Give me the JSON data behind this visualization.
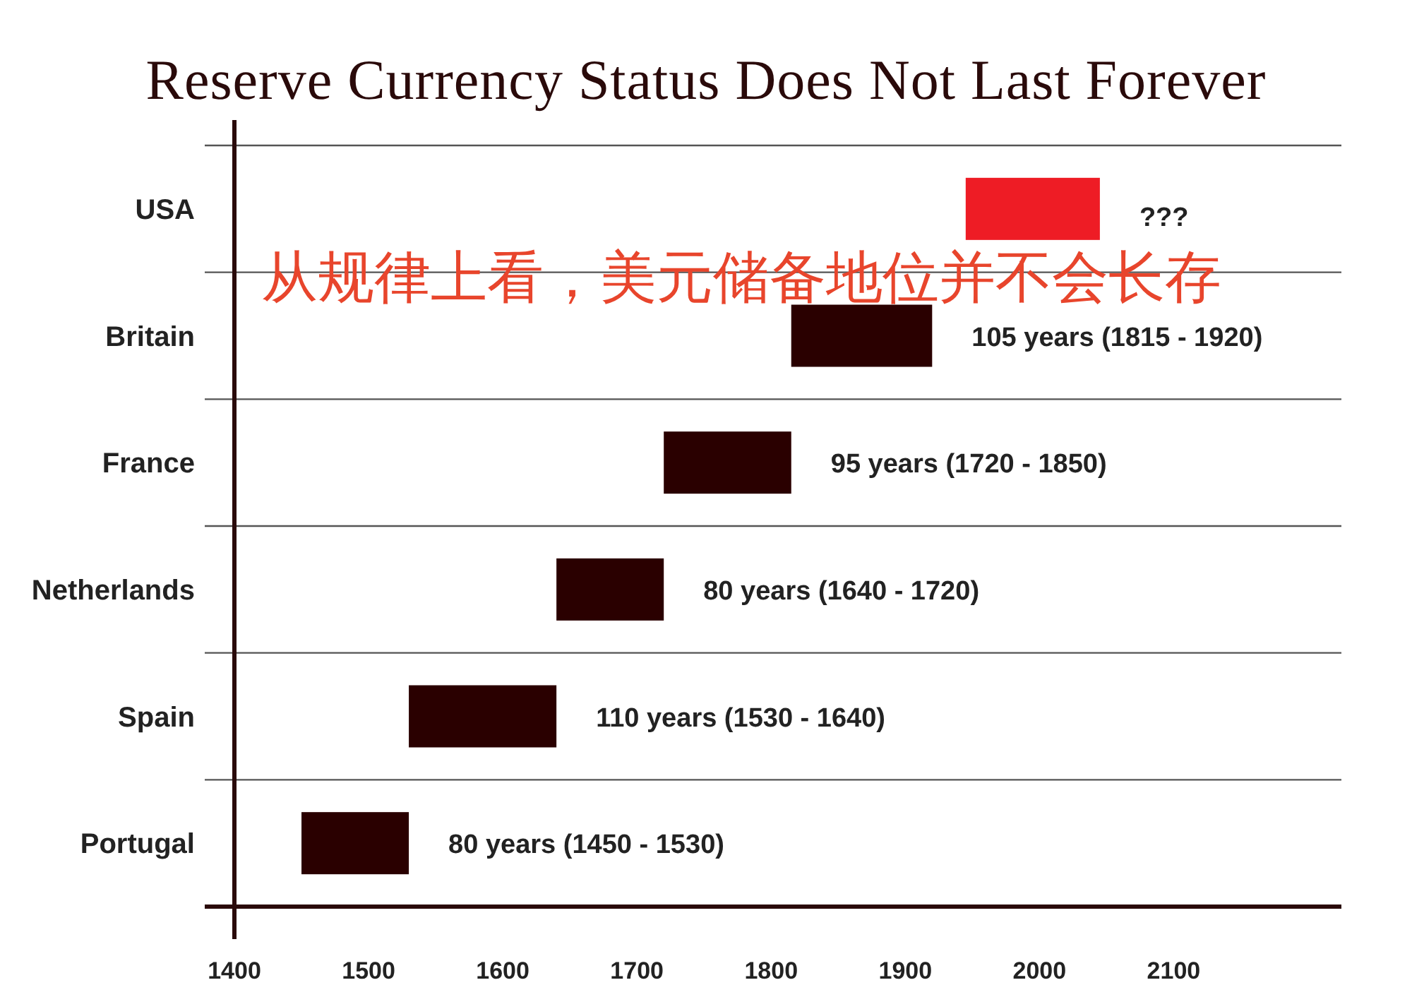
{
  "chart_data": {
    "type": "bar",
    "orientation": "horizontal",
    "title": "Reserve Currency Status Does Not Last Forever",
    "categories": [
      "USA",
      "Britain",
      "France",
      "Netherlands",
      "Spain",
      "Portugal"
    ],
    "base": [
      1945,
      1815,
      1720,
      1640,
      1530,
      1450
    ],
    "values": [
      100,
      105,
      95,
      80,
      110,
      80
    ],
    "colors": [
      "#ee1c25",
      "#2a0000",
      "#2a0000",
      "#2a0000",
      "#2a0000",
      "#2a0000"
    ],
    "value_labels": [
      "???",
      "105 years (1815 - 1920)",
      "95 years (1720 - 1850)",
      "80 years (1640 - 1720)",
      "110 years (1530 - 1640)",
      "80 years (1450 - 1530)"
    ],
    "xlim": [
      1400,
      2225
    ],
    "xticks": [
      1400,
      1500,
      1600,
      1700,
      1800,
      1900,
      2000,
      2100
    ],
    "grid": true,
    "annotations": [
      "从规律上看，美元储备地位并不会长存"
    ]
  }
}
